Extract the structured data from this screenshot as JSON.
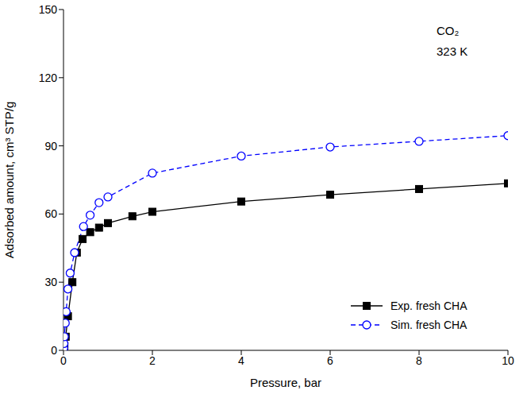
{
  "chart_data": {
    "type": "line",
    "xlabel": "Pressure, bar",
    "ylabel": "Adsorbed amount, cm³ STP/g",
    "annotations": [
      "CO₂",
      "323 K"
    ],
    "xlim": [
      0,
      10
    ],
    "xticks": [
      0,
      2,
      4,
      6,
      8,
      10
    ],
    "ylim": [
      0,
      150
    ],
    "yticks": [
      0,
      30,
      60,
      90,
      120,
      150
    ],
    "grid": false,
    "legend": "lower right",
    "series": [
      {
        "name": "Exp. fresh CHA",
        "color": "#000000",
        "marker": "square",
        "line_style": "solid",
        "x": [
          0.01,
          0.02,
          0.05,
          0.1,
          0.2,
          0.3,
          0.43,
          0.6,
          0.8,
          1.0,
          1.55,
          2.0,
          4.0,
          6.0,
          8.0,
          10.0
        ],
        "values": [
          0.5,
          2,
          6,
          15,
          30,
          43,
          49,
          52,
          54,
          56,
          59,
          61,
          65.5,
          68.5,
          71,
          73.5
        ]
      },
      {
        "name": "Sim. fresh CHA",
        "color": "#0000ff",
        "marker": "circle",
        "line_style": "dashed",
        "x": [
          0.005,
          0.01,
          0.02,
          0.04,
          0.06,
          0.1,
          0.15,
          0.25,
          0.45,
          0.6,
          0.8,
          1.0,
          2.0,
          4.0,
          6.0,
          8.0,
          10.0
        ],
        "values": [
          1,
          3,
          6,
          12,
          17,
          27,
          34,
          43,
          54.5,
          59.5,
          65,
          67.5,
          78,
          85.5,
          89.5,
          92,
          94.5
        ]
      }
    ]
  }
}
